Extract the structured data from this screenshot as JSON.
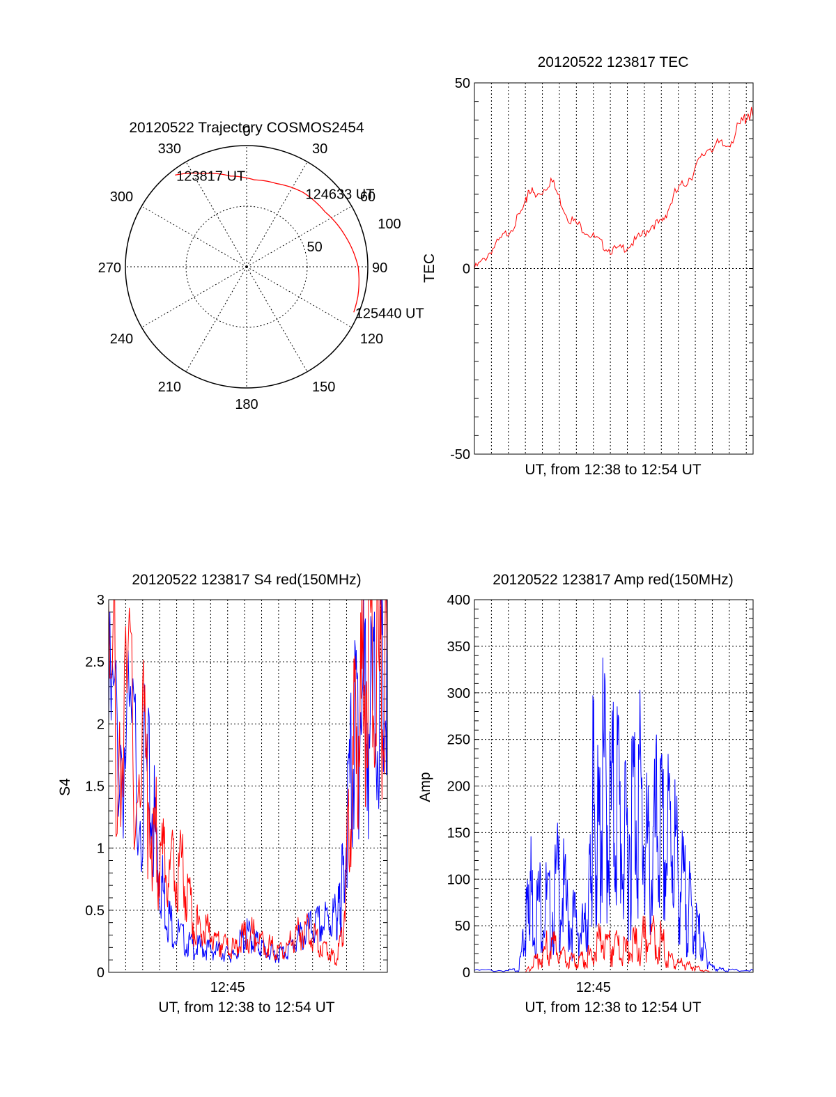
{
  "chart_data": [
    {
      "id": "trajectory",
      "type": "polar-trajectory",
      "title": "20120522 Trajectory COSMOS2454",
      "angle_labels": [
        "0",
        "30",
        "60",
        "90",
        "120",
        "150",
        "180",
        "210",
        "240",
        "270",
        "300",
        "330"
      ],
      "angle_values": [
        0,
        30,
        60,
        90,
        120,
        150,
        180,
        210,
        240,
        270,
        300,
        330
      ],
      "radius_ring_labels": [
        "50",
        "100"
      ],
      "radius_rings": [
        50,
        100
      ],
      "radius_max": 100,
      "grid": true,
      "trace_color": "#ff0000",
      "track": [
        {
          "az": 322,
          "zen": 96
        },
        {
          "az": 335,
          "zen": 85
        },
        {
          "az": 350,
          "zen": 76
        },
        {
          "az": 5,
          "zen": 72
        },
        {
          "az": 20,
          "zen": 73
        },
        {
          "az": 37,
          "zen": 77
        },
        {
          "az": 55,
          "zen": 79
        },
        {
          "az": 72,
          "zen": 85
        },
        {
          "az": 90,
          "zen": 92
        },
        {
          "az": 105,
          "zen": 95
        },
        {
          "az": 113,
          "zen": 96
        }
      ],
      "annotations": [
        {
          "text": "123817 UT",
          "az": 322,
          "zen": 96
        },
        {
          "text": "124633 UT",
          "az": 38,
          "zen": 77
        },
        {
          "text": "125440 UT",
          "az": 113,
          "zen": 96
        }
      ]
    },
    {
      "id": "tec",
      "type": "line",
      "title": "20120522 123817 TEC",
      "xlabel": "UT, from 12:38 to 12:54 UT",
      "ylabel": "TEC",
      "xlim": [
        0,
        16.4
      ],
      "ylim": [
        -50,
        50
      ],
      "yticks": [
        "50",
        "0",
        "-50"
      ],
      "ytick_values": [
        50,
        0,
        -50
      ],
      "grid": true,
      "series": [
        {
          "color": "#ff0000",
          "x": [
            0,
            0.5,
            1,
            1.5,
            2,
            2.5,
            3,
            3.2,
            3.6,
            4,
            4.5,
            5,
            5.5,
            6,
            6.5,
            7,
            7.5,
            8,
            8.5,
            9,
            9.5,
            10,
            10.5,
            11,
            11.3,
            11.8,
            12.3,
            12.8,
            13.3,
            13.8,
            14.3,
            14.8,
            15.3,
            15.8,
            16.1,
            16.4
          ],
          "y": [
            0,
            2,
            5,
            7.5,
            10,
            13,
            17,
            22,
            19,
            21,
            24,
            19,
            14,
            12,
            10.5,
            8.5,
            6.5,
            5,
            5,
            6,
            7.5,
            9.5,
            12,
            12,
            15,
            20,
            22.5,
            25.5,
            29,
            33,
            33,
            33,
            36,
            39.5,
            42,
            41
          ]
        }
      ]
    },
    {
      "id": "s4",
      "type": "line",
      "title": "20120522 123817 S4 red(150MHz)",
      "xlabel": "UT, from 12:38 to 12:54 UT",
      "ylabel": "S4",
      "xlim": [
        0,
        16.4
      ],
      "ylim": [
        0,
        3
      ],
      "xticks": [
        "12:45"
      ],
      "xtick_values": [
        7
      ],
      "yticks": [
        "0",
        "0.5",
        "1",
        "1.5",
        "2",
        "2.5",
        "3"
      ],
      "ytick_values": [
        0,
        0.5,
        1,
        1.5,
        2,
        2.5,
        3
      ],
      "grid": true,
      "series": [
        {
          "color": "#0000ff",
          "x": [
            0,
            1,
            2,
            2.6,
            3,
            3.4,
            3.8,
            4.5,
            5,
            5.5,
            6,
            6.5,
            7,
            7.3,
            7.8,
            8.2,
            8.6,
            9,
            9.5,
            10,
            10.5,
            11,
            11.5,
            12,
            12.5,
            13,
            13.4,
            13.6,
            13.8,
            14.2,
            14.6,
            15,
            15.5,
            16,
            16.4
          ],
          "y": [
            2.0,
            1.8,
            1.6,
            1.3,
            0.8,
            0.5,
            0.35,
            0.25,
            0.2,
            0.2,
            0.18,
            0.17,
            0.15,
            0.12,
            0.25,
            0.3,
            0.25,
            0.2,
            0.15,
            0.15,
            0.18,
            0.25,
            0.3,
            0.35,
            0.38,
            0.42,
            0.45,
            0.5,
            0.8,
            1.5,
            2.0,
            2.2,
            2.0,
            2.4,
            2.1
          ]
        },
        {
          "color": "#ff0000",
          "x": [
            0,
            1,
            2,
            2.6,
            3,
            3.5,
            4,
            4.5,
            5,
            5.5,
            6,
            6.5,
            7,
            7.5,
            8,
            8.5,
            9,
            9.5,
            10,
            10.5,
            11,
            11.5,
            12,
            12.5,
            13,
            13.4,
            13.8,
            14.2,
            14.6,
            15,
            15.5,
            16,
            16.4
          ],
          "y": [
            2.2,
            2.0,
            1.8,
            1.2,
            0.9,
            0.8,
            0.9,
            0.7,
            0.4,
            0.35,
            0.3,
            0.25,
            0.2,
            0.18,
            0.3,
            0.3,
            0.25,
            0.2,
            0.18,
            0.2,
            0.3,
            0.35,
            0.3,
            0.22,
            0.15,
            0.1,
            0.35,
            1.3,
            2.0,
            2.3,
            2.5,
            2.4,
            2.5
          ]
        }
      ]
    },
    {
      "id": "amp",
      "type": "line",
      "title": "20120522 123817 Amp red(150MHz)",
      "xlabel": "UT, from 12:38 to 12:54 UT",
      "ylabel": "Amp",
      "xlim": [
        0,
        16.4
      ],
      "ylim": [
        0,
        400
      ],
      "xticks": [
        "12:45"
      ],
      "xtick_values": [
        7
      ],
      "yticks": [
        "0",
        "50",
        "100",
        "150",
        "200",
        "250",
        "300",
        "350",
        "400"
      ],
      "ytick_values": [
        0,
        50,
        100,
        150,
        200,
        250,
        300,
        350,
        400
      ],
      "grid": true,
      "series": [
        {
          "color": "#0000ff",
          "x": [
            0,
            2,
            2.6,
            3,
            3.2,
            3.5,
            4,
            4.5,
            5,
            5.5,
            6,
            6.5,
            6.8,
            7,
            7.3,
            7.6,
            8,
            8.4,
            8.8,
            9.2,
            9.6,
            10,
            10.4,
            10.8,
            11.2,
            11.6,
            12,
            12.4,
            12.8,
            13.2,
            13.6,
            14,
            14.5,
            15,
            16.4
          ],
          "y": [
            2,
            2,
            3,
            40,
            110,
            60,
            80,
            60,
            100,
            60,
            50,
            40,
            90,
            180,
            130,
            200,
            160,
            190,
            120,
            160,
            200,
            140,
            100,
            160,
            120,
            160,
            100,
            80,
            60,
            40,
            20,
            5,
            3,
            2,
            2
          ]
        },
        {
          "color": "#ff0000",
          "x": [
            0,
            3,
            3.5,
            4,
            4.5,
            5,
            5.5,
            6,
            6.5,
            7,
            7.5,
            8,
            8.5,
            9,
            9.5,
            10,
            10.5,
            11,
            11.5,
            12,
            12.5,
            13,
            13.5,
            14,
            16.4
          ],
          "y": [
            0,
            0,
            10,
            20,
            30,
            20,
            15,
            10,
            15,
            20,
            35,
            30,
            25,
            20,
            30,
            35,
            40,
            30,
            15,
            10,
            8,
            5,
            2,
            0,
            0
          ]
        }
      ]
    }
  ]
}
